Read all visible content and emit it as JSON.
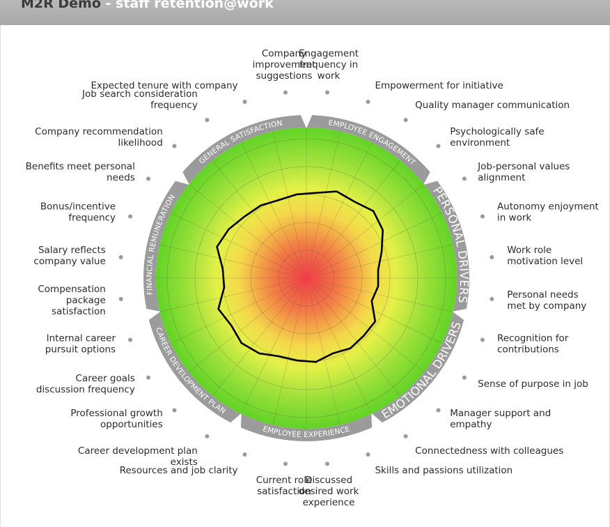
{
  "header": {
    "app_name": "M2R Demo",
    "separator": " - ",
    "subtitle": "staff retention@work"
  },
  "chart_data": {
    "type": "radar",
    "range": [
      0,
      10
    ],
    "grid": true,
    "axes": [
      {
        "label": [
          "Engagement",
          "frequency in",
          "work"
        ],
        "value": 5.7
      },
      {
        "label": [
          "Empowerment for initiative"
        ],
        "value": 6.1
      },
      {
        "label": [
          "Quality manager communication"
        ],
        "value": 6.0
      },
      {
        "label": [
          "Psychologically safe",
          "environment"
        ],
        "value": 6.3
      },
      {
        "label": [
          "Job-personal values",
          "alignment"
        ],
        "value": 6.0
      },
      {
        "label": [
          "Autonomy enjoyment",
          "in work"
        ],
        "value": 5.3
      },
      {
        "label": [
          "Work role",
          "motivation level"
        ],
        "value": 4.8
      },
      {
        "label": [
          "Personal needs",
          "met by company"
        ],
        "value": 4.8
      },
      {
        "label": [
          "Recognition for",
          "contributions"
        ],
        "value": 4.6
      },
      {
        "label": [
          "Sense of purpose in job"
        ],
        "value": 5.4
      },
      {
        "label": [
          "Manager support and",
          "empathy"
        ],
        "value": 5.4
      },
      {
        "label": [
          "Connectedness with colleagues"
        ],
        "value": 5.5
      },
      {
        "label": [
          "Skills and passions utilization"
        ],
        "value": 5.3
      },
      {
        "label": [
          "Discussed",
          "desired work",
          "experience"
        ],
        "value": 5.6
      },
      {
        "label": [
          "Current role",
          "satisfaction"
        ],
        "value": 5.5
      },
      {
        "label": [
          "Resources and job clarity"
        ],
        "value": 5.5
      },
      {
        "label": [
          "Career development plan",
          "exists"
        ],
        "value": 5.9
      },
      {
        "label": [
          "Professional growth",
          "opportunities"
        ],
        "value": 6.1
      },
      {
        "label": [
          "Career goals",
          "discussion frequency"
        ],
        "value": 5.9
      },
      {
        "label": [
          "Internal career",
          "pursuit options"
        ],
        "value": 6.2
      },
      {
        "label": [
          "Compensation",
          "package",
          "satisfaction"
        ],
        "value": 5.5
      },
      {
        "label": [
          "Salary reflects",
          "company value"
        ],
        "value": 5.6
      },
      {
        "label": [
          "Bonus/incentive",
          "frequency"
        ],
        "value": 6.3
      },
      {
        "label": [
          "Benefits meet personal",
          "needs"
        ],
        "value": 6.1
      },
      {
        "label": [
          "Company recommendation",
          "likelihood"
        ],
        "value": 5.8
      },
      {
        "label": [
          "Job search consideration",
          "frequency"
        ],
        "value": 5.7
      },
      {
        "label": [
          "Expected tenure with company"
        ],
        "value": 5.5
      },
      {
        "label": [
          "Company",
          "improvement",
          "suggestions"
        ],
        "value": 5.6
      }
    ],
    "categories": [
      {
        "name": "EMPLOYEE ENGAGEMENT",
        "axes": [
          0,
          3
        ],
        "size": "small"
      },
      {
        "name": "PERSONAL DRIVERS",
        "axes": [
          4,
          7
        ],
        "size": "large"
      },
      {
        "name": "EMOTIONAL DRIVERS",
        "axes": [
          8,
          11
        ],
        "size": "large"
      },
      {
        "name": "EMPLOYEE EXPERIENCE",
        "axes": [
          12,
          15
        ],
        "size": "small"
      },
      {
        "name": "CAREER DEVELOPMENT PLAN",
        "axes": [
          16,
          19
        ],
        "size": "small"
      },
      {
        "name": "FINANCIAL REMUNERATION",
        "axes": [
          20,
          23
        ],
        "size": "small"
      },
      {
        "name": "GENERAL SATISFACTION",
        "axes": [
          24,
          27
        ],
        "size": "small"
      }
    ],
    "colors": {
      "center": "#ee3c48",
      "mid": "#f5e04a",
      "outer": "#6ad626",
      "band": "#9b9b9b",
      "line": "#000000"
    }
  }
}
